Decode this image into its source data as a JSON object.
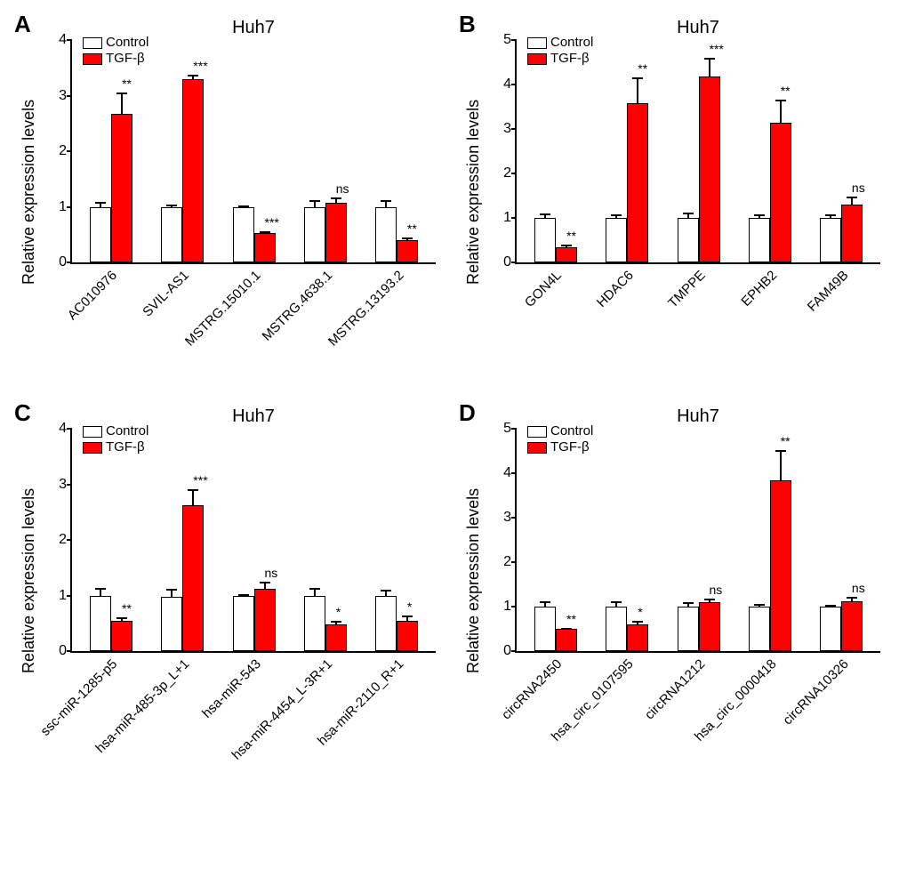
{
  "figure": {
    "font_family": "Arial",
    "background_color": "#ffffff",
    "control_fill": "#ffffff",
    "tgfb_fill": "#ff0000",
    "border_color": "#000000",
    "panels": [
      {
        "letter": "A",
        "title": "Huh7",
        "ylabel": "Relative expression  levels",
        "ymax": 4,
        "ytick_step": 1,
        "legend": {
          "control": "Control",
          "tgfb": "TGF-β"
        },
        "categories": [
          "AC010976",
          "SVIL-AS1",
          "MSTRG.15010.1",
          "MSTRG.4638.1",
          "MSTRG.13193.2"
        ],
        "control_values": [
          1.0,
          1.0,
          1.0,
          1.0,
          1.0
        ],
        "control_err": [
          0.1,
          0.05,
          0.04,
          0.13,
          0.14
        ],
        "tgfb_values": [
          2.68,
          3.3,
          0.53,
          1.08,
          0.4
        ],
        "tgfb_err": [
          0.4,
          0.1,
          0.05,
          0.1,
          0.06
        ],
        "sig": [
          "**",
          "***",
          "***",
          "ns",
          "**"
        ]
      },
      {
        "letter": "B",
        "title": "Huh7",
        "ylabel": "Relative expression  levels",
        "ymax": 5,
        "ytick_step": 1,
        "legend": {
          "control": "Control",
          "tgfb": "TGF-β"
        },
        "categories": [
          "GON4L",
          "HDAC6",
          "TMPPE",
          "EPHB2",
          "FAM49B"
        ],
        "control_values": [
          1.0,
          1.0,
          1.0,
          1.0,
          1.0
        ],
        "control_err": [
          0.12,
          0.1,
          0.15,
          0.1,
          0.1
        ],
        "tgfb_values": [
          0.35,
          3.58,
          4.18,
          3.14,
          1.3
        ],
        "tgfb_err": [
          0.07,
          0.6,
          0.45,
          0.55,
          0.2
        ],
        "sig": [
          "**",
          "**",
          "***",
          "**",
          "ns"
        ]
      },
      {
        "letter": "C",
        "title": "Huh7",
        "ylabel": "Relative expression  levels",
        "ymax": 4,
        "ytick_step": 1,
        "legend": {
          "control": "Control",
          "tgfb": "TGF-β"
        },
        "categories": [
          "ssc-miR-1285-p5",
          "hsa-miR-485-3p_L+1",
          "hsa-miR-543",
          "hsa-miR-4454_L-3R+1",
          "hsa-miR-2110_R+1"
        ],
        "control_values": [
          1.0,
          0.98,
          1.0,
          1.0,
          1.0
        ],
        "control_err": [
          0.15,
          0.16,
          0.04,
          0.15,
          0.12
        ],
        "tgfb_values": [
          0.55,
          2.63,
          1.12,
          0.48,
          0.55
        ],
        "tgfb_err": [
          0.08,
          0.3,
          0.14,
          0.08,
          0.1
        ],
        "sig": [
          "**",
          "***",
          "ns",
          "*",
          "*"
        ]
      },
      {
        "letter": "D",
        "title": "Huh7",
        "ylabel": "Relative expression  levels",
        "ymax": 5,
        "ytick_step": 1,
        "legend": {
          "control": "Control",
          "tgfb": "TGF-β"
        },
        "categories": [
          "circRNA2450",
          "hsa_circ_0107595",
          "circRNA1212",
          "hsa_circ_0000418",
          "circRNA10326"
        ],
        "control_values": [
          1.0,
          1.0,
          1.0,
          1.0,
          1.0
        ],
        "control_err": [
          0.15,
          0.14,
          0.12,
          0.09,
          0.06
        ],
        "tgfb_values": [
          0.5,
          0.6,
          1.1,
          3.85,
          1.12
        ],
        "tgfb_err": [
          0.05,
          0.1,
          0.1,
          0.7,
          0.12
        ],
        "sig": [
          "**",
          "*",
          "ns",
          "**",
          "ns"
        ]
      }
    ]
  }
}
